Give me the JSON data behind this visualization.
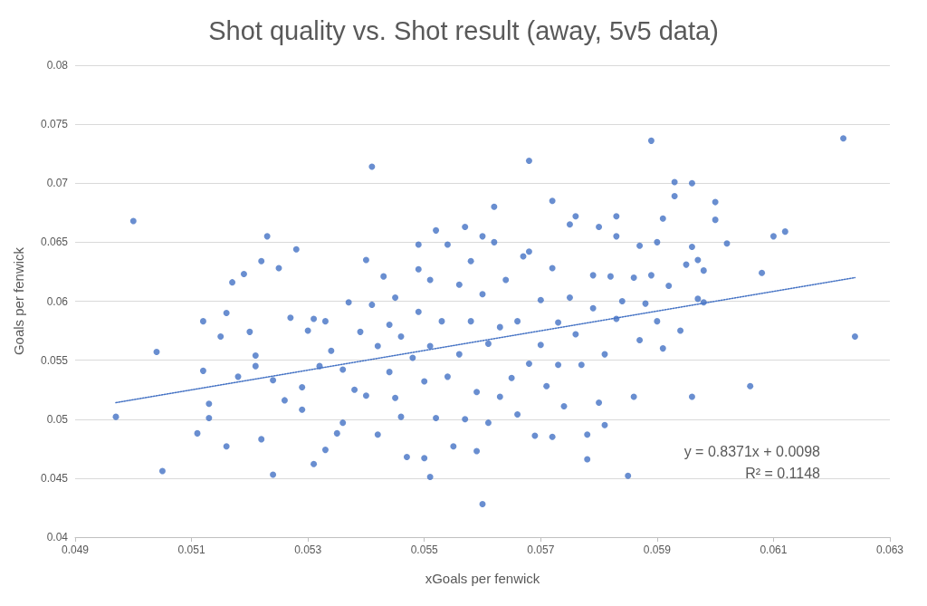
{
  "chart_data": {
    "type": "scatter",
    "title": "Shot quality vs. Shot result (away, 5v5 data)",
    "xlabel": "xGoals per fenwick",
    "ylabel": "Goals per fenwick",
    "xlim": [
      0.049,
      0.063
    ],
    "xticks": [
      0.049,
      0.051,
      0.053,
      0.055,
      0.057,
      0.059,
      0.061,
      0.063
    ],
    "ylim": [
      0.04,
      0.08
    ],
    "yticks": [
      0.04,
      0.045,
      0.05,
      0.055,
      0.06,
      0.065,
      0.07,
      0.075,
      0.08
    ],
    "grid": "y",
    "annotations": [
      "y = 0.8371x + 0.0098",
      "R² = 0.1148"
    ],
    "series": [
      {
        "marker": "circle",
        "color": "#4472c4",
        "x": [
          0.0497,
          0.05,
          0.0504,
          0.0505,
          0.0511,
          0.0512,
          0.0512,
          0.0513,
          0.0513,
          0.0515,
          0.0516,
          0.0516,
          0.0517,
          0.0518,
          0.0519,
          0.052,
          0.0521,
          0.0521,
          0.0522,
          0.0523,
          0.0522,
          0.0524,
          0.0525,
          0.0524,
          0.0526,
          0.0527,
          0.0528,
          0.0529,
          0.0529,
          0.053,
          0.0531,
          0.0531,
          0.0532,
          0.0533,
          0.0533,
          0.0534,
          0.0535,
          0.0536,
          0.0536,
          0.0537,
          0.0538,
          0.0539,
          0.054,
          0.054,
          0.0541,
          0.0541,
          0.0542,
          0.0542,
          0.0543,
          0.0544,
          0.0544,
          0.0545,
          0.0545,
          0.0546,
          0.0546,
          0.0547,
          0.0548,
          0.0549,
          0.0549,
          0.0549,
          0.055,
          0.055,
          0.0551,
          0.0551,
          0.0551,
          0.0552,
          0.0552,
          0.0553,
          0.0554,
          0.0554,
          0.0555,
          0.0556,
          0.0556,
          0.0557,
          0.0557,
          0.0558,
          0.0558,
          0.0559,
          0.0559,
          0.056,
          0.056,
          0.056,
          0.0561,
          0.0561,
          0.0562,
          0.0562,
          0.0563,
          0.0563,
          0.0564,
          0.0565,
          0.0566,
          0.0566,
          0.0567,
          0.0568,
          0.0568,
          0.0568,
          0.0569,
          0.057,
          0.057,
          0.0571,
          0.0572,
          0.0572,
          0.0572,
          0.0573,
          0.0573,
          0.0574,
          0.0575,
          0.0575,
          0.0576,
          0.0576,
          0.0577,
          0.0578,
          0.0578,
          0.0579,
          0.0579,
          0.058,
          0.058,
          0.0581,
          0.0581,
          0.0582,
          0.0583,
          0.0583,
          0.0583,
          0.0584,
          0.0585,
          0.0586,
          0.0586,
          0.0587,
          0.0587,
          0.0588,
          0.0589,
          0.0589,
          0.059,
          0.059,
          0.0591,
          0.0591,
          0.0592,
          0.0593,
          0.0593,
          0.0594,
          0.0595,
          0.0596,
          0.0596,
          0.0596,
          0.0597,
          0.0597,
          0.0598,
          0.0598,
          0.06,
          0.06,
          0.0602,
          0.0606,
          0.0608,
          0.061,
          0.0612,
          0.0622,
          0.0624
        ],
        "values": [
          0.0502,
          0.0668,
          0.0557,
          0.0456,
          0.0488,
          0.0583,
          0.0541,
          0.0501,
          0.0513,
          0.057,
          0.0477,
          0.059,
          0.0616,
          0.0536,
          0.0623,
          0.0574,
          0.0545,
          0.0554,
          0.0634,
          0.0655,
          0.0483,
          0.0453,
          0.0628,
          0.0533,
          0.0516,
          0.0586,
          0.0644,
          0.0527,
          0.0508,
          0.0575,
          0.0462,
          0.0585,
          0.0545,
          0.0474,
          0.0583,
          0.0558,
          0.0488,
          0.0542,
          0.0497,
          0.0599,
          0.0525,
          0.0574,
          0.0635,
          0.052,
          0.0597,
          0.0714,
          0.0562,
          0.0487,
          0.0621,
          0.058,
          0.054,
          0.0603,
          0.0518,
          0.057,
          0.0502,
          0.0468,
          0.0552,
          0.0648,
          0.0591,
          0.0627,
          0.0532,
          0.0467,
          0.0618,
          0.0451,
          0.0562,
          0.066,
          0.0501,
          0.0583,
          0.0648,
          0.0536,
          0.0477,
          0.0614,
          0.0555,
          0.0663,
          0.05,
          0.0583,
          0.0634,
          0.0523,
          0.0473,
          0.0428,
          0.0655,
          0.0606,
          0.0564,
          0.0497,
          0.068,
          0.065,
          0.0578,
          0.0519,
          0.0618,
          0.0535,
          0.0583,
          0.0504,
          0.0638,
          0.0719,
          0.0642,
          0.0547,
          0.0486,
          0.0601,
          0.0563,
          0.0528,
          0.0685,
          0.0628,
          0.0485,
          0.0582,
          0.0546,
          0.0511,
          0.0603,
          0.0665,
          0.0672,
          0.0572,
          0.0546,
          0.0487,
          0.0466,
          0.0594,
          0.0622,
          0.0663,
          0.0514,
          0.0555,
          0.0495,
          0.0621,
          0.0655,
          0.0672,
          0.0585,
          0.06,
          0.0452,
          0.0519,
          0.062,
          0.0647,
          0.0567,
          0.0598,
          0.0736,
          0.0622,
          0.0583,
          0.065,
          0.067,
          0.056,
          0.0613,
          0.0701,
          0.0689,
          0.0575,
          0.0631,
          0.07,
          0.0646,
          0.0519,
          0.0635,
          0.0602,
          0.0626,
          0.0599,
          0.0684,
          0.0669,
          0.0649,
          0.0528,
          0.0624,
          0.0655,
          0.0659,
          0.0738,
          0.057
        ]
      },
      {
        "type": "line",
        "marker": "none",
        "color": "#4472c4",
        "line_style": "dotted",
        "x": [
          0.0497,
          0.0624
        ],
        "values": [
          0.0514,
          0.062
        ]
      }
    ]
  }
}
